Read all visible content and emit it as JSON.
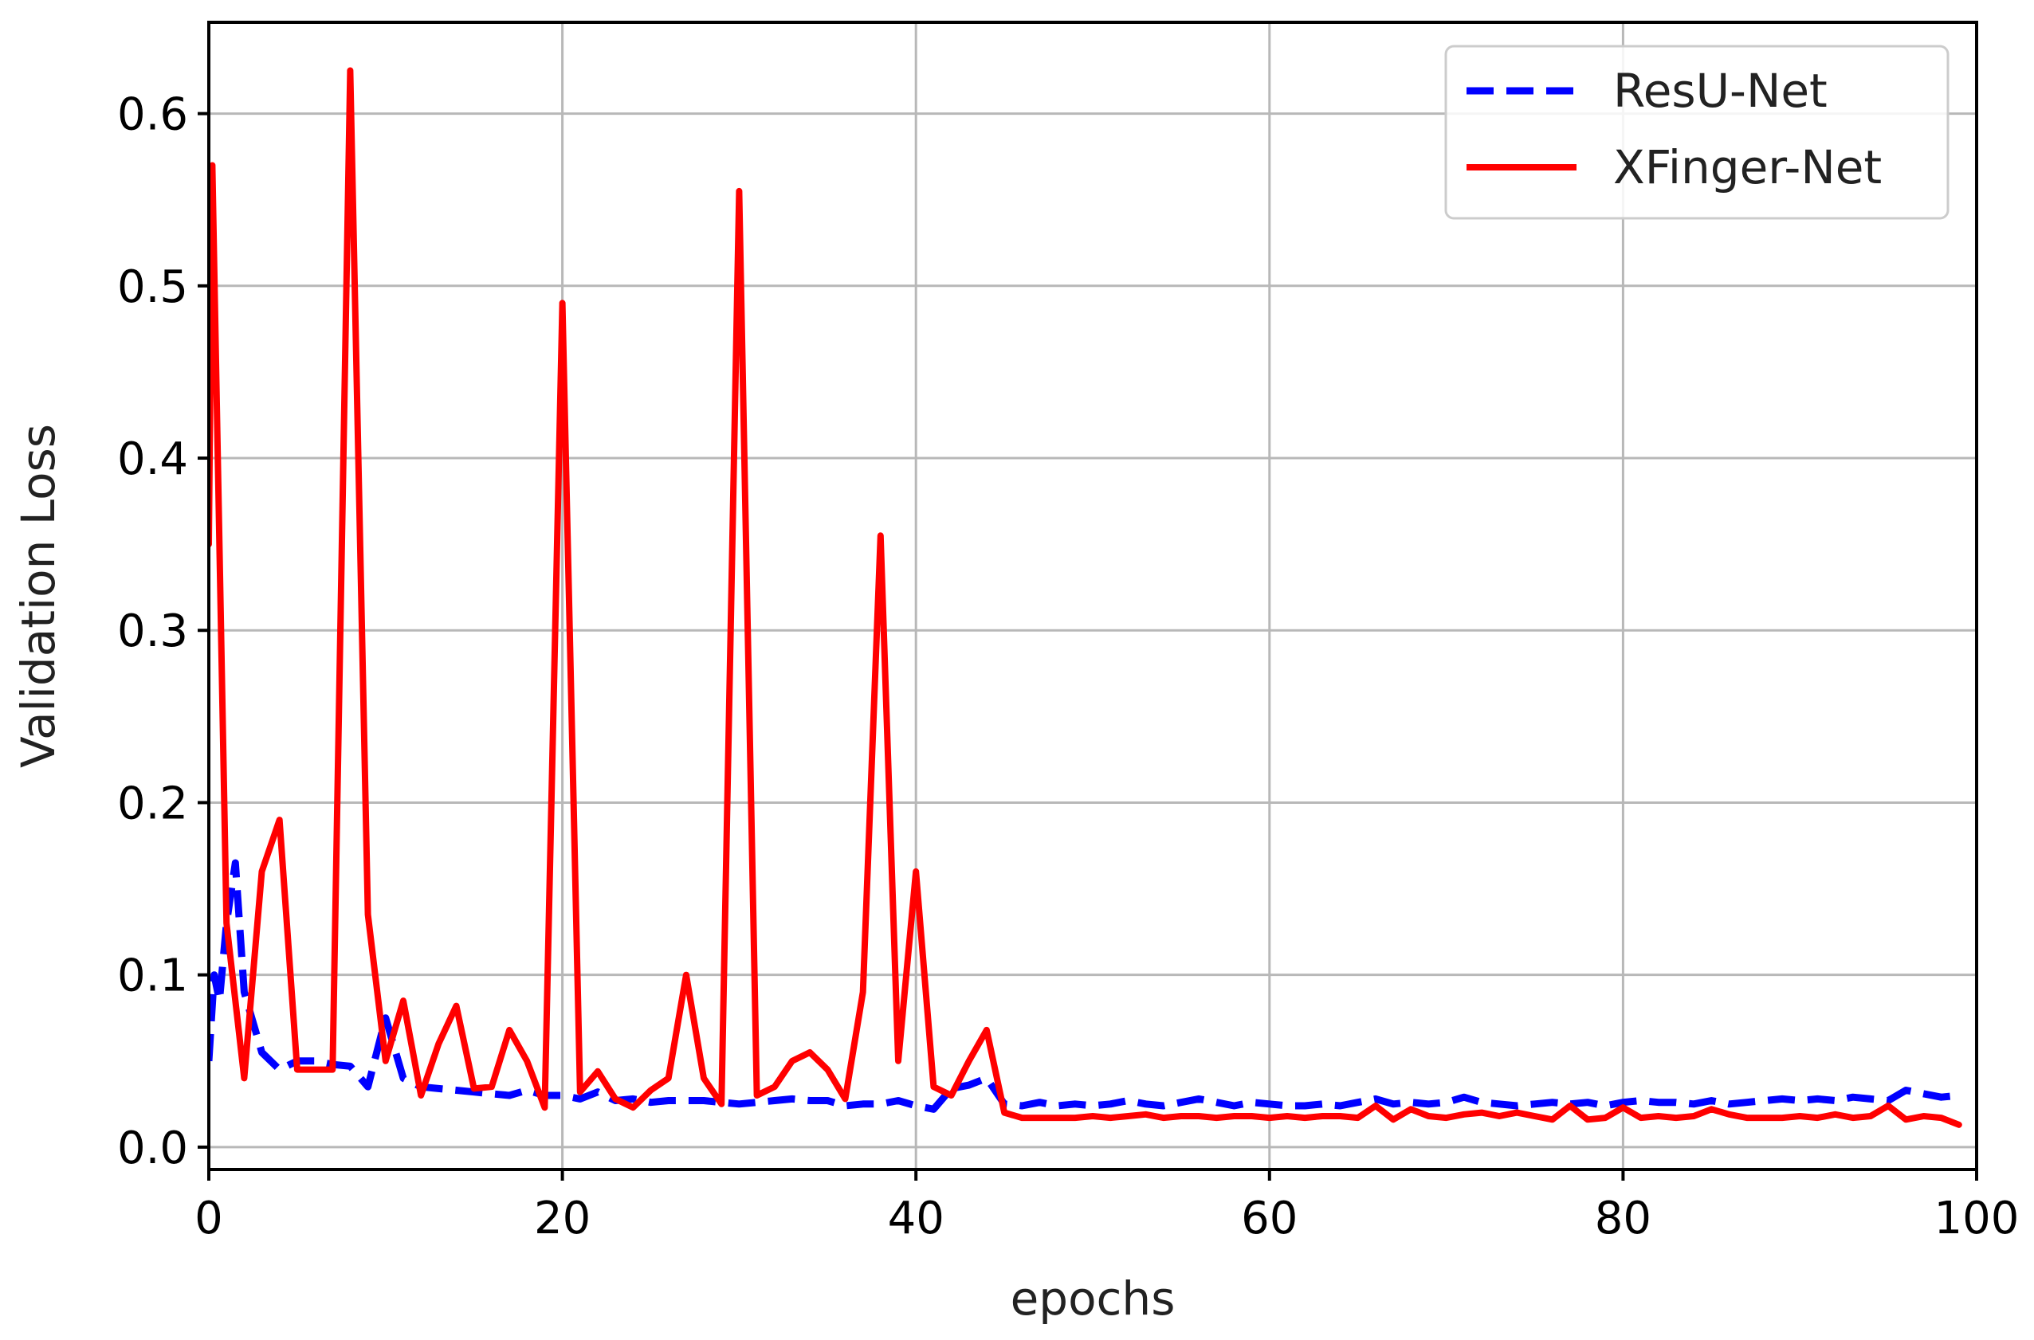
{
  "chart_data": {
    "type": "line",
    "xlabel": "epochs",
    "ylabel": "Validation Loss",
    "xlim": [
      0,
      100
    ],
    "ylim": [
      -0.013,
      0.653
    ],
    "xticks": [
      0,
      20,
      40,
      60,
      80,
      100
    ],
    "yticks": [
      0.0,
      0.1,
      0.2,
      0.3,
      0.4,
      0.5,
      0.6
    ],
    "xtick_labels": [
      "0",
      "20",
      "40",
      "60",
      "80",
      "100"
    ],
    "ytick_labels": [
      "0.0",
      "0.1",
      "0.2",
      "0.3",
      "0.4",
      "0.5",
      "0.6"
    ],
    "grid": true,
    "legend_position": "top-right",
    "series": [
      {
        "name": "ResU-Net",
        "color": "#0000ff",
        "style": "dashed",
        "x": [
          0,
          0.3,
          0.6,
          1,
          1.5,
          2,
          3,
          4,
          5,
          6,
          7,
          8,
          9,
          10,
          11,
          12,
          13,
          14,
          15,
          16,
          17,
          18,
          19,
          20,
          21,
          22,
          23,
          24,
          25,
          26,
          27,
          28,
          29,
          30,
          31,
          32,
          33,
          34,
          35,
          36,
          37,
          38,
          39,
          40,
          41,
          42,
          43,
          44,
          45,
          46,
          47,
          48,
          49,
          50,
          51,
          52,
          53,
          54,
          55,
          56,
          57,
          58,
          59,
          60,
          61,
          62,
          63,
          64,
          65,
          66,
          67,
          68,
          69,
          70,
          71,
          72,
          73,
          74,
          75,
          76,
          77,
          78,
          79,
          80,
          81,
          82,
          83,
          84,
          85,
          86,
          87,
          88,
          89,
          90,
          91,
          92,
          93,
          94,
          95,
          96,
          97,
          98,
          99
        ],
        "y": [
          0.05,
          0.1,
          0.085,
          0.13,
          0.165,
          0.09,
          0.055,
          0.045,
          0.05,
          0.05,
          0.048,
          0.047,
          0.035,
          0.075,
          0.04,
          0.035,
          0.034,
          0.033,
          0.032,
          0.031,
          0.03,
          0.033,
          0.03,
          0.03,
          0.028,
          0.032,
          0.027,
          0.028,
          0.026,
          0.027,
          0.027,
          0.027,
          0.026,
          0.025,
          0.026,
          0.027,
          0.028,
          0.027,
          0.027,
          0.024,
          0.025,
          0.025,
          0.027,
          0.024,
          0.022,
          0.034,
          0.036,
          0.04,
          0.025,
          0.024,
          0.026,
          0.024,
          0.025,
          0.024,
          0.025,
          0.027,
          0.025,
          0.024,
          0.026,
          0.028,
          0.026,
          0.024,
          0.026,
          0.025,
          0.024,
          0.024,
          0.025,
          0.024,
          0.026,
          0.028,
          0.025,
          0.026,
          0.025,
          0.026,
          0.029,
          0.026,
          0.025,
          0.024,
          0.025,
          0.026,
          0.025,
          0.026,
          0.024,
          0.026,
          0.027,
          0.026,
          0.026,
          0.025,
          0.027,
          0.025,
          0.026,
          0.027,
          0.028,
          0.027,
          0.028,
          0.027,
          0.029,
          0.028,
          0.027,
          0.033,
          0.031,
          0.029,
          0.03
        ]
      },
      {
        "name": "XFinger-Net",
        "color": "#ff0000",
        "style": "solid",
        "x": [
          0,
          0.2,
          1,
          2,
          3,
          4,
          5,
          6,
          7,
          8,
          9,
          10,
          11,
          12,
          13,
          14,
          15,
          16,
          17,
          18,
          19,
          20,
          21,
          22,
          23,
          24,
          25,
          26,
          27,
          28,
          29,
          30,
          31,
          32,
          33,
          34,
          35,
          36,
          37,
          38,
          39,
          40,
          41,
          42,
          43,
          44,
          45,
          46,
          47,
          48,
          49,
          50,
          51,
          52,
          53,
          54,
          55,
          56,
          57,
          58,
          59,
          60,
          61,
          62,
          63,
          64,
          65,
          66,
          67,
          68,
          69,
          70,
          71,
          72,
          73,
          74,
          75,
          76,
          77,
          78,
          79,
          80,
          81,
          82,
          83,
          84,
          85,
          86,
          87,
          88,
          89,
          90,
          91,
          92,
          93,
          94,
          95,
          96,
          97,
          98,
          99
        ],
        "y": [
          0.35,
          0.57,
          0.13,
          0.04,
          0.16,
          0.19,
          0.045,
          0.045,
          0.045,
          0.625,
          0.135,
          0.05,
          0.085,
          0.03,
          0.06,
          0.082,
          0.034,
          0.035,
          0.068,
          0.05,
          0.023,
          0.49,
          0.032,
          0.044,
          0.028,
          0.023,
          0.033,
          0.04,
          0.1,
          0.04,
          0.025,
          0.555,
          0.03,
          0.035,
          0.05,
          0.055,
          0.045,
          0.028,
          0.09,
          0.355,
          0.05,
          0.16,
          0.035,
          0.03,
          0.05,
          0.068,
          0.02,
          0.017,
          0.017,
          0.017,
          0.017,
          0.018,
          0.017,
          0.018,
          0.019,
          0.017,
          0.018,
          0.018,
          0.017,
          0.018,
          0.018,
          0.017,
          0.018,
          0.017,
          0.018,
          0.018,
          0.017,
          0.024,
          0.016,
          0.022,
          0.018,
          0.017,
          0.019,
          0.02,
          0.018,
          0.02,
          0.018,
          0.016,
          0.024,
          0.016,
          0.017,
          0.023,
          0.017,
          0.018,
          0.017,
          0.018,
          0.022,
          0.019,
          0.017,
          0.017,
          0.017,
          0.018,
          0.017,
          0.019,
          0.017,
          0.018,
          0.024,
          0.016,
          0.018,
          0.017,
          0.013
        ]
      }
    ]
  }
}
